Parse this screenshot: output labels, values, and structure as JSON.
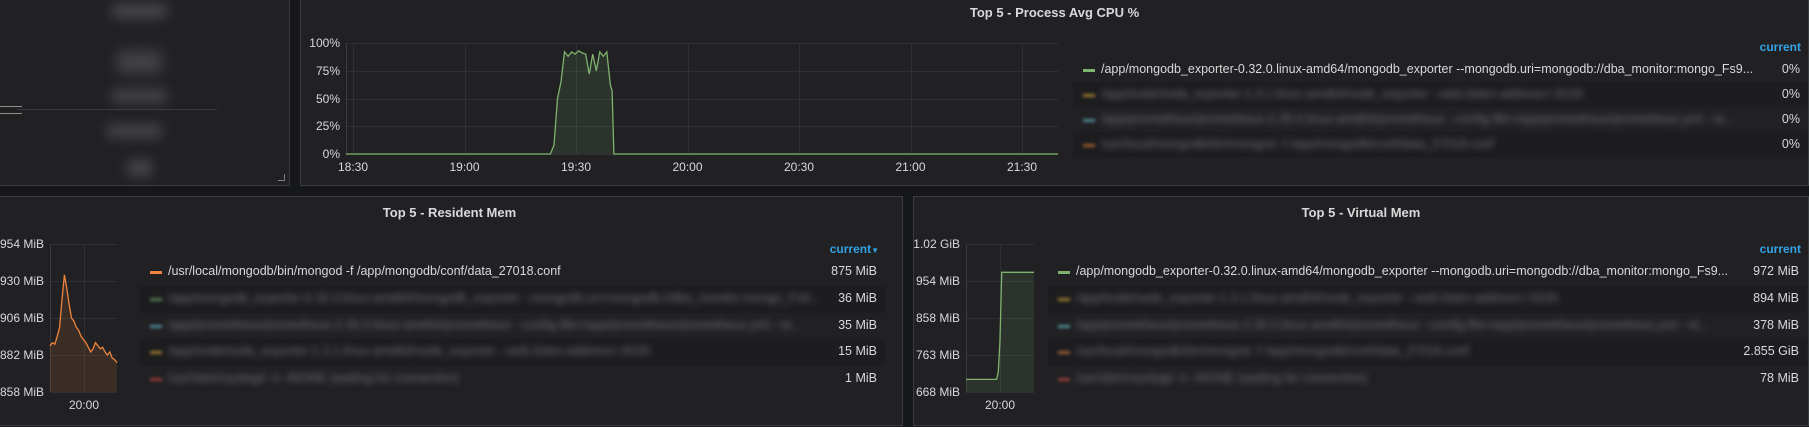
{
  "colors": {
    "green": "#7eb26d",
    "orange": "#ef843c",
    "yellow": "#eab839",
    "cyan": "#6ed0e0",
    "red": "#e24d42",
    "legendHead": "#33a2e5"
  },
  "top_left_panel": {
    "blurred_items": [
      "",
      "",
      "",
      "",
      ""
    ]
  },
  "cpu_panel": {
    "title": "Top 5 - Process Avg CPU %",
    "legend_header": "current",
    "legend": [
      {
        "name": "/app/mongodb_exporter-0.32.0.linux-amd64/mongodb_exporter --mongodb.uri=mongodb://dba_monitor:mongo_Fs9...",
        "value": "0%",
        "color": "#7eb26d",
        "blurred": false
      },
      {
        "name": "/app/node/node_exporter-1.3.1.linux-amd64/node_exporter --web.listen-address=:9100",
        "value": "0%",
        "color": "#eab839",
        "blurred": true
      },
      {
        "name": "/app/prometheus/prometheus-2.35.0.linux-amd64/prometheus --config.file=/app/prometheus/prometheus.yml --st...",
        "value": "0%",
        "color": "#6ed0e0",
        "blurred": true
      },
      {
        "name": "/usr/local/mongodb/bin/mongod -f /app/mongodb/conf/data_27018.conf",
        "value": "0%",
        "color": "#ef843c",
        "blurred": true
      }
    ],
    "chart_data": {
      "type": "line",
      "title": "Top 5 - Process Avg CPU %",
      "y_ticks": [
        "100%",
        "75%",
        "50%",
        "25%",
        "0%"
      ],
      "x_ticks": [
        "18:30",
        "19:00",
        "19:30",
        "20:00",
        "20:30",
        "21:00",
        "21:30"
      ],
      "ylim": [
        0,
        100
      ],
      "xlim_minutes": [
        1105,
        1307
      ],
      "series": [
        {
          "name": "/app/mongodb_exporter-0.32.0.linux-amd64/mongodb_exporter --mongodb.uri=mongodb://dba_monitor:mongo_Fs9...",
          "color": "#7eb26d",
          "x": [
            1105,
            1163,
            1164,
            1165,
            1166,
            1167,
            1168,
            1169,
            1170,
            1171,
            1172,
            1173,
            1174,
            1175,
            1176,
            1177,
            1178,
            1179,
            1180,
            1180.5,
            1181,
            1182,
            1307
          ],
          "y": [
            0,
            0,
            8,
            50,
            65,
            92,
            88,
            92,
            90,
            93,
            91,
            90,
            72,
            90,
            75,
            92,
            88,
            92,
            62,
            57,
            0,
            0,
            0
          ]
        }
      ]
    }
  },
  "resident_panel": {
    "title": "Top 5 - Resident Mem",
    "legend_header": "current",
    "legend_sort_icon": "sort-desc-icon",
    "legend": [
      {
        "name": "/usr/local/mongodb/bin/mongod -f /app/mongodb/conf/data_27018.conf",
        "value": "875 MiB",
        "color": "#ef843c",
        "blurred": false
      },
      {
        "name": "/app/mongodb_exporter-0.32.0.linux-amd64/mongodb_exporter --mongodb.uri=mongodb://dba_monitor:mongo_Fs9...",
        "value": "36 MiB",
        "color": "#7eb26d",
        "blurred": true
      },
      {
        "name": "/app/prometheus/prometheus-2.35.0.linux-amd64/prometheus --config.file=/app/prometheus/prometheus.yml --st...",
        "value": "35 MiB",
        "color": "#6ed0e0",
        "blurred": true
      },
      {
        "name": "/app/node/node_exporter-1.3.1.linux-amd64/node_exporter --web.listen-address=:9100",
        "value": "15 MiB",
        "color": "#eab839",
        "blurred": true
      },
      {
        "name": "/usr/sbin/rsyslogd -n -iNONE (waiting for connection)",
        "value": "1 MiB",
        "color": "#e24d42",
        "blurred": true
      }
    ],
    "chart_data": {
      "type": "area",
      "title": "Top 5 - Resident Mem",
      "y_ticks": [
        "954 MiB",
        "930 MiB",
        "906 MiB",
        "882 MiB",
        "858 MiB"
      ],
      "x_ticks": [
        "20:00"
      ],
      "ylim": [
        858,
        954
      ],
      "series": [
        {
          "name": "/usr/local/mongodb/bin/mongod -f /app/mongodb/conf/data_27018.conf",
          "color": "#ef843c",
          "x": [
            0,
            2,
            4,
            6,
            8,
            10,
            12,
            14,
            16,
            18,
            20,
            22,
            24,
            26,
            28,
            30,
            32,
            34,
            36,
            38,
            40,
            42,
            44,
            46,
            48,
            50,
            52,
            54,
            56
          ],
          "y": [
            888,
            890,
            889,
            894,
            900,
            918,
            934,
            925,
            915,
            906,
            904,
            900,
            898,
            894,
            892,
            890,
            887,
            884,
            886,
            890,
            888,
            886,
            887,
            884,
            882,
            884,
            880,
            879,
            877
          ]
        }
      ]
    }
  },
  "virtual_panel": {
    "title": "Top 5 - Virtual Mem",
    "legend_header": "current",
    "legend": [
      {
        "name": "/app/mongodb_exporter-0.32.0.linux-amd64/mongodb_exporter --mongodb.uri=mongodb://dba_monitor:mongo_Fs9...",
        "value": "972 MiB",
        "color": "#7eb26d",
        "blurred": false
      },
      {
        "name": "/app/node/node_exporter-1.3.1.linux-amd64/node_exporter --web.listen-address=:9100",
        "value": "894 MiB",
        "color": "#eab839",
        "blurred": true
      },
      {
        "name": "/app/prometheus/prometheus-2.35.0.linux-amd64/prometheus --config.file=/app/prometheus/prometheus.yml --st...",
        "value": "378 MiB",
        "color": "#6ed0e0",
        "blurred": true
      },
      {
        "name": "/usr/local/mongodb/bin/mongod -f /app/mongodb/conf/data_27018.conf",
        "value": "2.855 GiB",
        "color": "#ef843c",
        "blurred": true
      },
      {
        "name": "/usr/sbin/rsyslogd -n -iNONE (waiting for connection)",
        "value": "78 MiB",
        "color": "#e24d42",
        "blurred": true
      }
    ],
    "chart_data": {
      "type": "area",
      "title": "Top 5 - Virtual Mem",
      "y_ticks": [
        "1.02 GiB",
        "954 MiB",
        "858 MiB",
        "763 MiB",
        "668 MiB"
      ],
      "x_ticks": [
        "20:00"
      ],
      "ylim": [
        668,
        1044
      ],
      "series": [
        {
          "name": "/app/mongodb_exporter-0.32.0.linux-amd64/mongodb_exporter --mongodb.uri=mongodb://dba_monitor:mongo_Fs9...",
          "color": "#7eb26d",
          "x": [
            0,
            12,
            18,
            19,
            20,
            21,
            22,
            40
          ],
          "y": [
            700,
            700,
            700,
            720,
            800,
            972,
            972,
            972
          ]
        }
      ]
    }
  }
}
